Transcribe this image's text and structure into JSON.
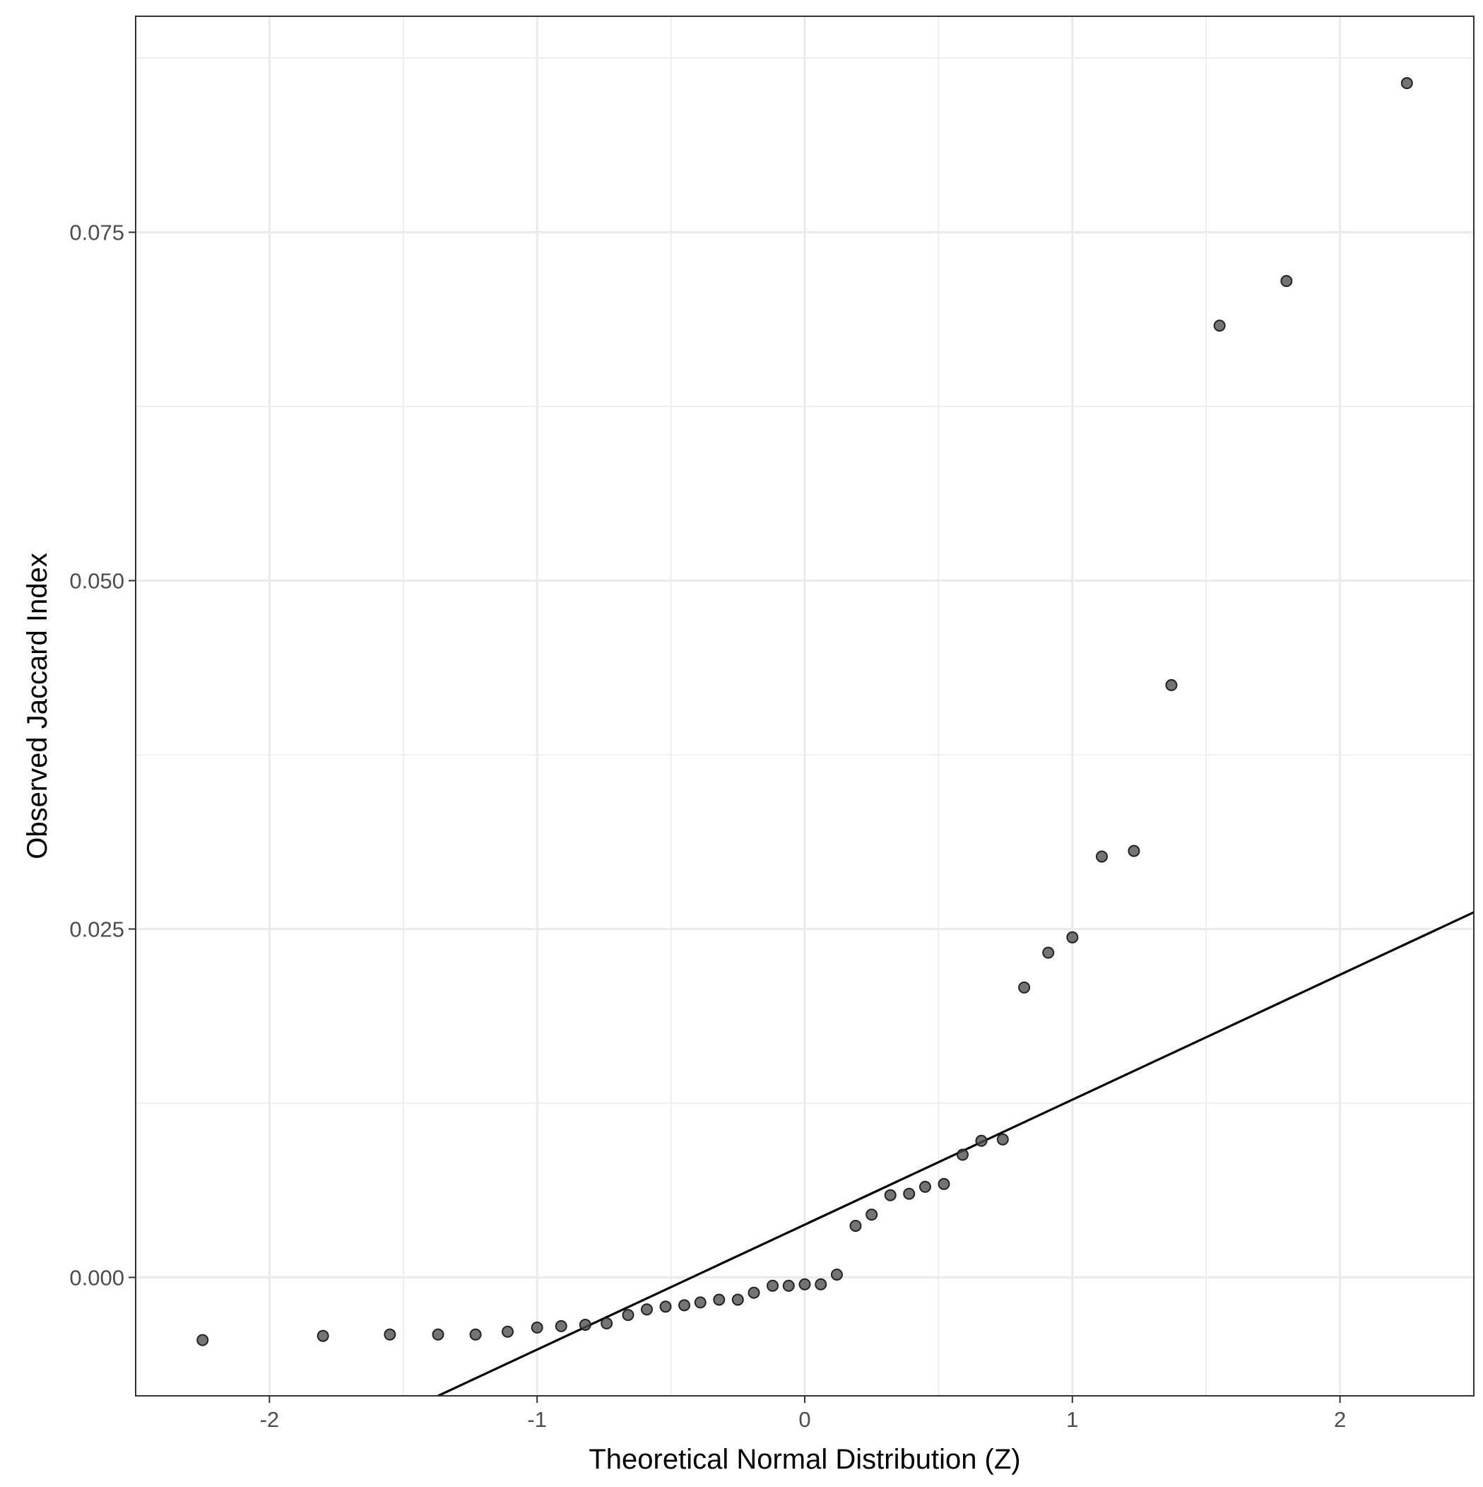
{
  "chart_data": {
    "type": "scatter",
    "title": "",
    "xlabel": "Theoretical Normal Distribution (Z)",
    "ylabel": "Observed Jaccard Index",
    "xlim": [
      -2.5,
      2.5
    ],
    "ylim": [
      -0.0085,
      0.0905
    ],
    "x_ticks": [
      -2,
      -1,
      0,
      1,
      2
    ],
    "x_tick_labels": [
      "-2",
      "-1",
      "0",
      "1",
      "2"
    ],
    "y_ticks": [
      0.0,
      0.025,
      0.05,
      0.075
    ],
    "y_tick_labels": [
      "0.000",
      "0.025",
      "0.050",
      "0.075"
    ],
    "grid": true,
    "legend": "none",
    "point_color": "#4d4d4d",
    "line_color": "#000000",
    "points": [
      {
        "x": -2.25,
        "y": -0.0045
      },
      {
        "x": -1.8,
        "y": -0.0042
      },
      {
        "x": -1.55,
        "y": -0.0041
      },
      {
        "x": -1.37,
        "y": -0.0041
      },
      {
        "x": -1.23,
        "y": -0.0041
      },
      {
        "x": -1.11,
        "y": -0.0039
      },
      {
        "x": -1.0,
        "y": -0.0036
      },
      {
        "x": -0.91,
        "y": -0.0035
      },
      {
        "x": -0.82,
        "y": -0.0034
      },
      {
        "x": -0.74,
        "y": -0.0033
      },
      {
        "x": -0.66,
        "y": -0.0027
      },
      {
        "x": -0.59,
        "y": -0.0023
      },
      {
        "x": -0.52,
        "y": -0.0021
      },
      {
        "x": -0.45,
        "y": -0.002
      },
      {
        "x": -0.39,
        "y": -0.0018
      },
      {
        "x": -0.32,
        "y": -0.0016
      },
      {
        "x": -0.25,
        "y": -0.0016
      },
      {
        "x": -0.19,
        "y": -0.0011
      },
      {
        "x": -0.12,
        "y": -0.0006
      },
      {
        "x": -0.06,
        "y": -0.0006
      },
      {
        "x": 0.0,
        "y": -0.0005
      },
      {
        "x": 0.06,
        "y": -0.0005
      },
      {
        "x": 0.12,
        "y": 0.0002
      },
      {
        "x": 0.19,
        "y": 0.0037
      },
      {
        "x": 0.25,
        "y": 0.0045
      },
      {
        "x": 0.32,
        "y": 0.0059
      },
      {
        "x": 0.39,
        "y": 0.006
      },
      {
        "x": 0.45,
        "y": 0.0065
      },
      {
        "x": 0.52,
        "y": 0.0067
      },
      {
        "x": 0.59,
        "y": 0.0088
      },
      {
        "x": 0.66,
        "y": 0.0098
      },
      {
        "x": 0.74,
        "y": 0.0099
      },
      {
        "x": 0.82,
        "y": 0.0208
      },
      {
        "x": 0.91,
        "y": 0.0233
      },
      {
        "x": 1.0,
        "y": 0.0244
      },
      {
        "x": 1.11,
        "y": 0.0302
      },
      {
        "x": 1.23,
        "y": 0.0306
      },
      {
        "x": 1.37,
        "y": 0.0425
      },
      {
        "x": 1.55,
        "y": 0.0683
      },
      {
        "x": 1.8,
        "y": 0.0715
      },
      {
        "x": 2.25,
        "y": 0.0857
      }
    ],
    "reference_line": {
      "x1": -1.37,
      "y1": -0.0085,
      "x2": 2.5,
      "y2": 0.0262
    }
  }
}
